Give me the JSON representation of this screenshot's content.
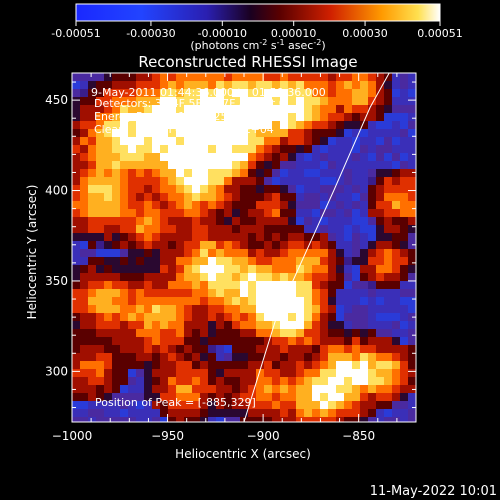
{
  "chart_data": {
    "type": "heatmap",
    "title": "Reconstructed RHESSI Image",
    "colorbar": {
      "labels": [
        "-0.00051",
        "-0.00030",
        "-0.00010",
        "0.00010",
        "0.00030",
        "0.00051"
      ],
      "unit_prefix": "(photons cm",
      "unit_exp1": "-2",
      "unit_mid": " s",
      "unit_exp2": "-1",
      "unit_asec": " asec",
      "unit_exp3": "-2",
      "unit_suffix": ")"
    },
    "xlabel": "Heliocentric X (arcsec)",
    "ylabel": "Heliocentric Y (arcsec)",
    "xlim": [
      -1000,
      -820
    ],
    "ylim": [
      272,
      465
    ],
    "xticks": [
      -1000,
      -950,
      -900,
      -850
    ],
    "yticks": [
      300,
      350,
      400,
      450
    ],
    "annotations": {
      "time": "9-May-2011 01:44:36.000 to 01:50:36.000",
      "detectors": "Detectors: 3F 4F 5F 6F 7F 8F, Att 0",
      "energy": "Energy Range: 12.0 - 25.0 keV",
      "clean_label": "Clean",
      "counts": "Total counts: 2.11E+04",
      "peak": "Position of Peak = [-885,329]"
    },
    "limb": [
      [
        -910,
        272
      ],
      [
        -893,
        330
      ],
      [
        -863,
        400
      ],
      [
        -844,
        446
      ],
      [
        -834,
        465
      ]
    ],
    "peak": [
      -885,
      329
    ],
    "timestamp": "11-May-2022 10:01"
  }
}
